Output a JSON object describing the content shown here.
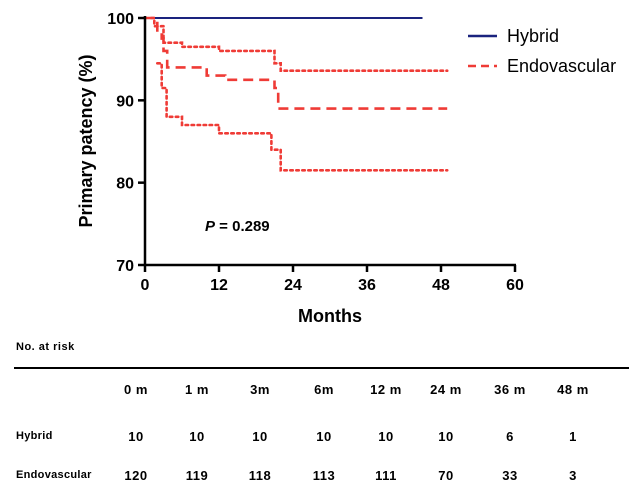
{
  "chart_data": {
    "type": "line",
    "subtype": "kaplan-meier",
    "xlabel": "Months",
    "ylabel": "Primary patency (%)",
    "xlim": [
      0,
      60
    ],
    "ylim": [
      70,
      100
    ],
    "xticks": [
      0,
      12,
      24,
      36,
      48,
      60
    ],
    "yticks": [
      70,
      80,
      90,
      100
    ],
    "legend_position": "top-right",
    "annotation": {
      "italic": "P",
      "text": " = 0.289"
    },
    "series": [
      {
        "name": "Hybrid",
        "color": "#1a237e",
        "style": "solid",
        "points": [
          [
            0,
            100
          ],
          [
            45,
            100
          ]
        ]
      },
      {
        "name": "Endovascular",
        "color": "#ef3b36",
        "style": "dashed",
        "points": [
          [
            0,
            100
          ],
          [
            2,
            100
          ],
          [
            2,
            98.5
          ],
          [
            2.7,
            98.5
          ],
          [
            2.7,
            97.5
          ],
          [
            3,
            97.5
          ],
          [
            3,
            96
          ],
          [
            3.6,
            96
          ],
          [
            3.6,
            94
          ],
          [
            10,
            94
          ],
          [
            10,
            93
          ],
          [
            13,
            93
          ],
          [
            13,
            92.5
          ],
          [
            21,
            92.5
          ],
          [
            21,
            91.5
          ],
          [
            21.6,
            91.5
          ],
          [
            21.6,
            89
          ],
          [
            49,
            89
          ]
        ]
      },
      {
        "name": "Endovascular upper CI",
        "color": "#ef3b36",
        "style": "dotted",
        "points": [
          [
            1,
            100
          ],
          [
            1.5,
            100
          ],
          [
            1.5,
            99
          ],
          [
            3,
            99
          ],
          [
            3,
            97
          ],
          [
            6,
            97
          ],
          [
            6,
            96.5
          ],
          [
            12,
            96.5
          ],
          [
            12,
            96
          ],
          [
            21,
            96
          ],
          [
            21,
            94.5
          ],
          [
            22,
            94.5
          ],
          [
            22,
            93.6
          ],
          [
            49,
            93.6
          ]
        ]
      },
      {
        "name": "Endovascular lower CI",
        "color": "#ef3b36",
        "style": "dotted",
        "points": [
          [
            2,
            94.5
          ],
          [
            2.7,
            94.5
          ],
          [
            2.7,
            91.5
          ],
          [
            3.5,
            91.5
          ],
          [
            3.5,
            88
          ],
          [
            6,
            88
          ],
          [
            6,
            87
          ],
          [
            12,
            87
          ],
          [
            12,
            86
          ],
          [
            20.5,
            86
          ],
          [
            20.5,
            84
          ],
          [
            22,
            84
          ],
          [
            22,
            81.5
          ],
          [
            49,
            81.5
          ]
        ]
      }
    ]
  },
  "risk_table": {
    "title": "No. at risk",
    "headers": [
      "0 m",
      "1 m",
      "3m",
      "6m",
      "12 m",
      "24 m",
      "36 m",
      "48 m"
    ],
    "rows": [
      {
        "label": "Hybrid",
        "values": [
          "10",
          "10",
          "10",
          "10",
          "10",
          "10",
          "6",
          "1"
        ]
      },
      {
        "label": "Endovascular",
        "values": [
          "120",
          "119",
          "118",
          "113",
          "111",
          "70",
          "33",
          "3"
        ]
      }
    ]
  }
}
